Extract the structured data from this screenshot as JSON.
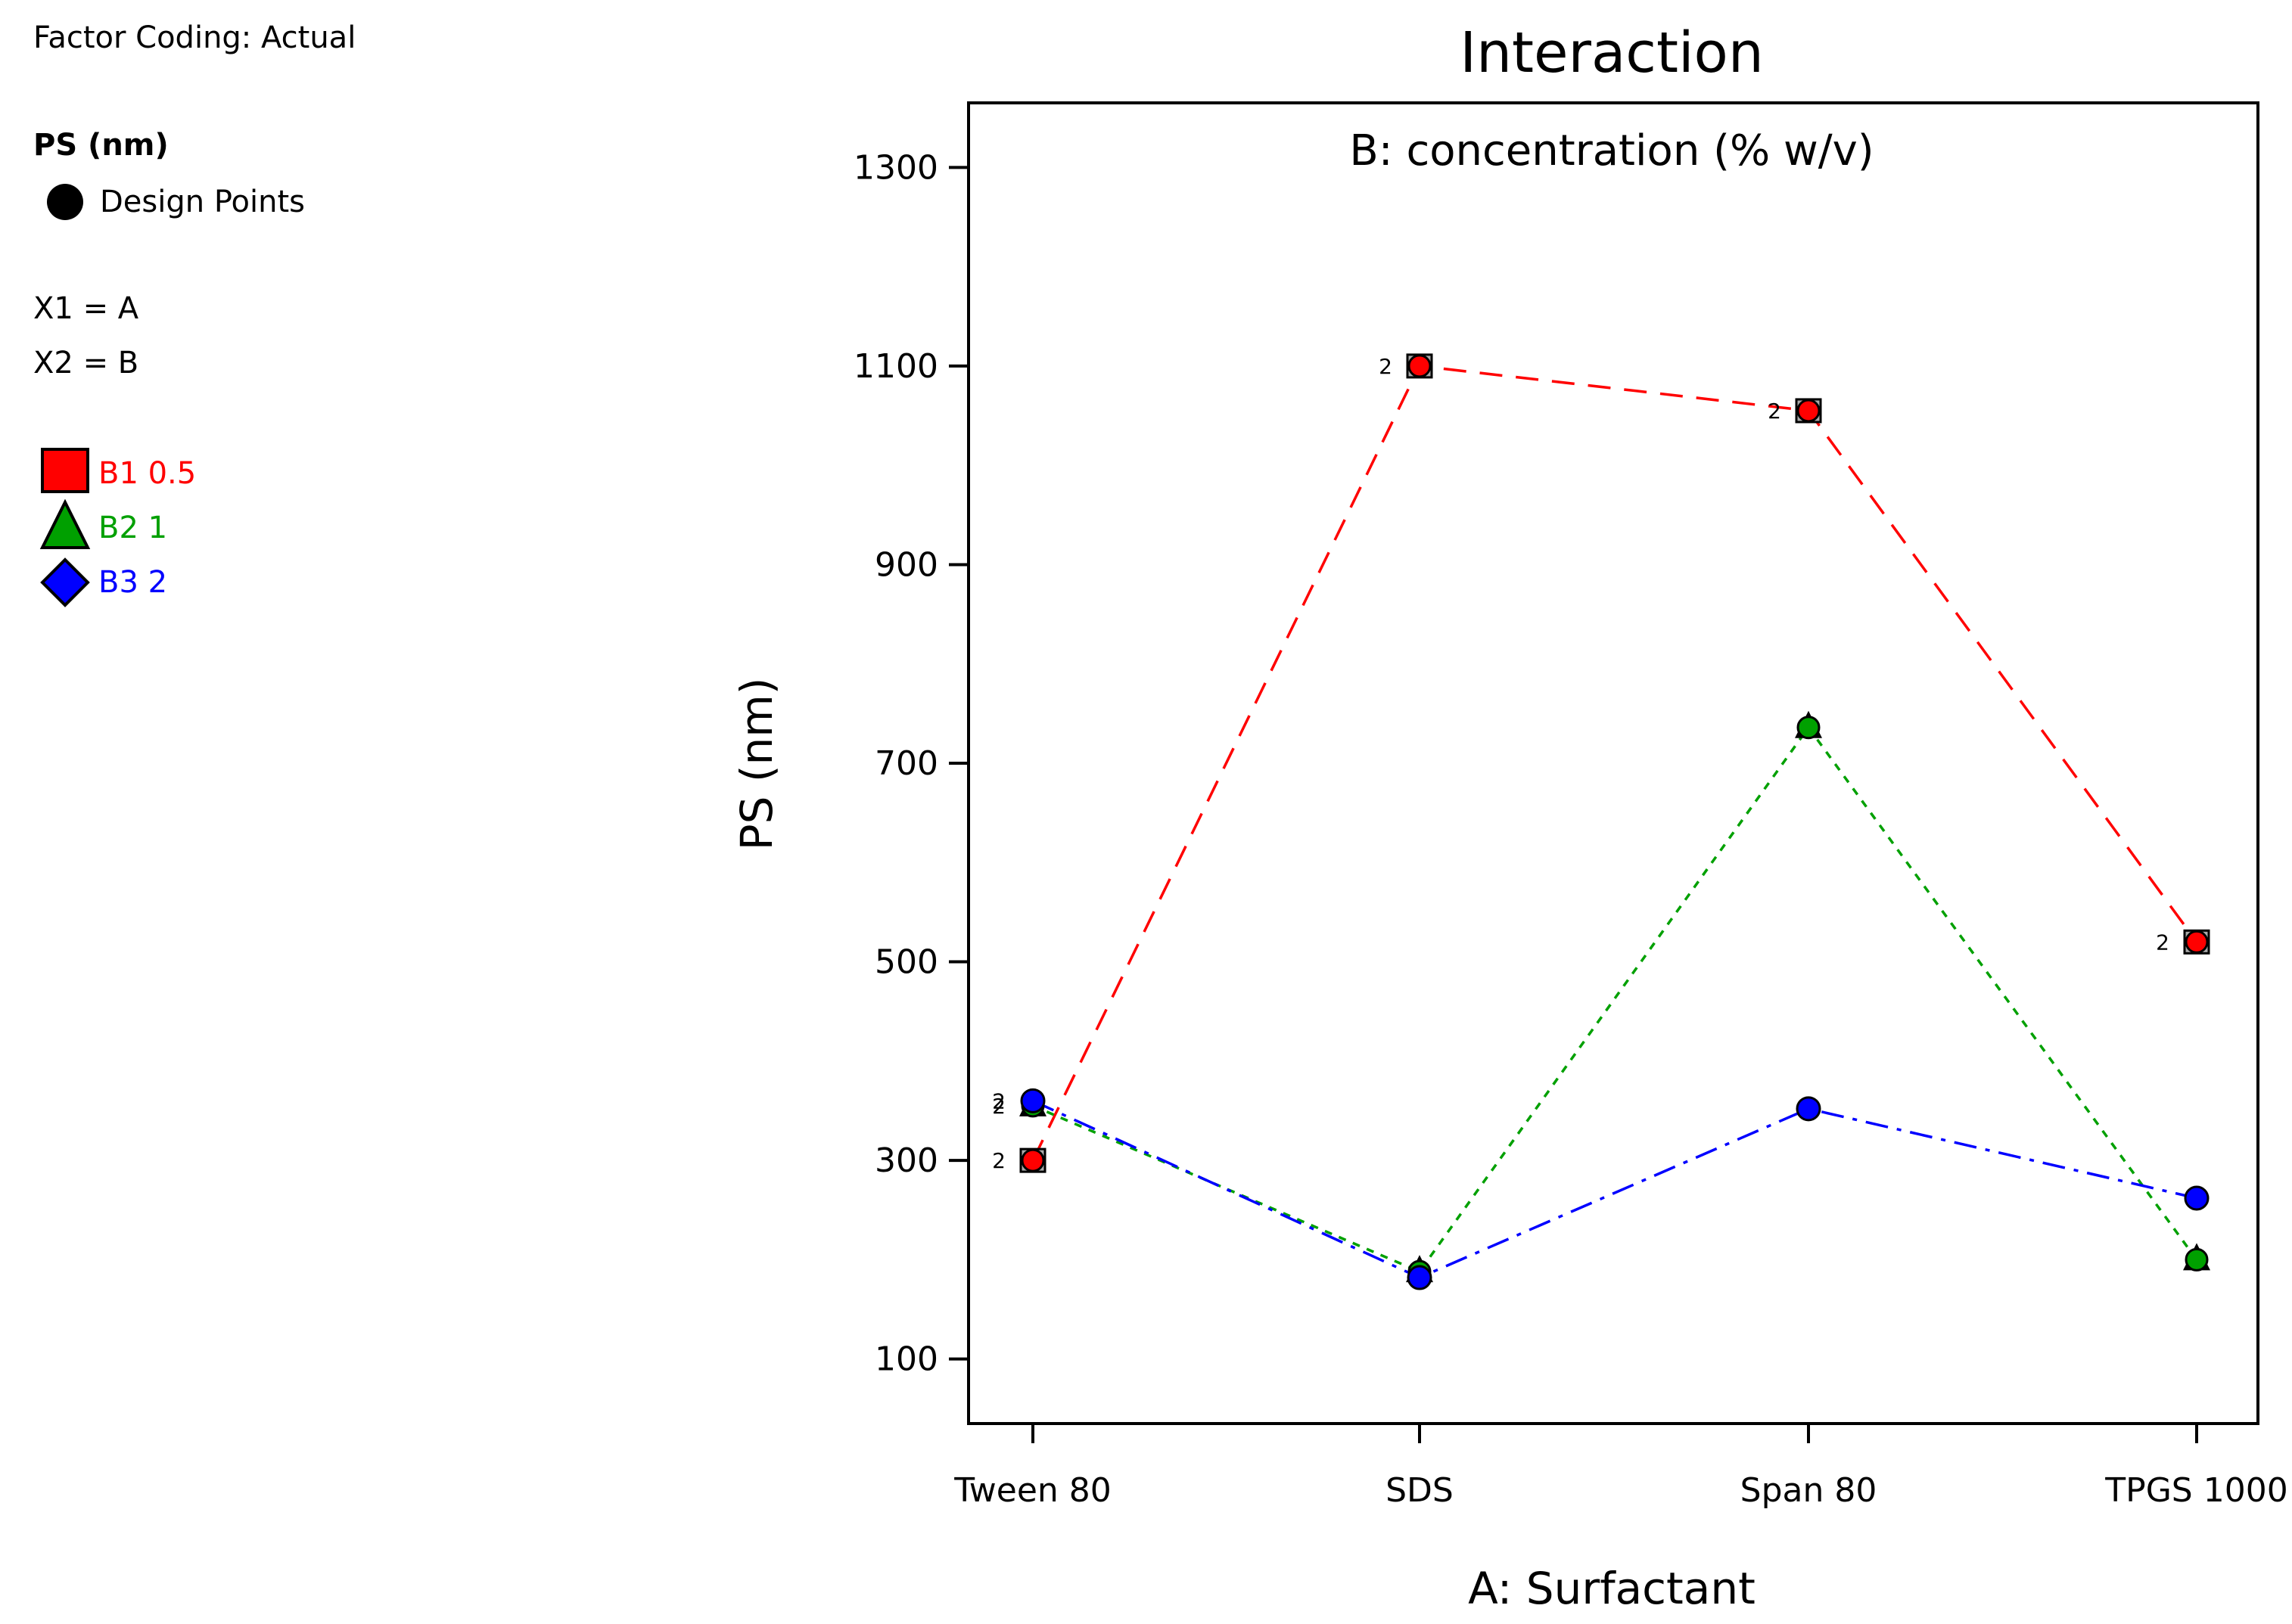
{
  "legend_panel": {
    "factor_coding": "Factor Coding: Actual",
    "response": "PS (nm)",
    "design_points": "Design Points",
    "x1": "X1 = A",
    "x2": "X2 = B",
    "levels": [
      {
        "label": "B1 0.5",
        "color": "#ff0000",
        "symbol": "square"
      },
      {
        "label": "B2 1",
        "color": "#00a000",
        "symbol": "triangle"
      },
      {
        "label": "B3 2",
        "color": "#0000ff",
        "symbol": "diamond"
      }
    ]
  },
  "chart_data": {
    "type": "line",
    "title": "Interaction",
    "subtitle": "B: concentration (% w/v)",
    "xlabel": "A: Surfactant",
    "ylabel": "PS (nm)",
    "categories": [
      "Tween 80",
      "SDS",
      "Span 80",
      "TPGS 1000"
    ],
    "yticks": [
      100,
      300,
      500,
      700,
      900,
      1100,
      1300
    ],
    "ylim": [
      35,
      1365
    ],
    "grid": false,
    "series": [
      {
        "name": "B1 0.5",
        "color": "#ff0000",
        "fill": "#ff0000",
        "dash": "dashed",
        "values": [
          300,
          1100,
          1055,
          520
        ]
      },
      {
        "name": "B2 1",
        "color": "#00a000",
        "fill": "#00a000",
        "dash": "dotted",
        "values": [
          355,
          188,
          736,
          200
        ]
      },
      {
        "name": "B3 2",
        "color": "#0000ff",
        "fill": "#0000ff",
        "dash": "dashdot",
        "values": [
          360,
          182,
          352,
          262
        ]
      }
    ],
    "point_labels": [
      {
        "series": 0,
        "index": 0,
        "text": "2"
      },
      {
        "series": 0,
        "index": 1,
        "text": "2"
      },
      {
        "series": 0,
        "index": 2,
        "text": "2"
      },
      {
        "series": 0,
        "index": 3,
        "text": "2"
      },
      {
        "series": 1,
        "index": 0,
        "text": "2"
      },
      {
        "series": 2,
        "index": 0,
        "text": "2"
      }
    ]
  }
}
